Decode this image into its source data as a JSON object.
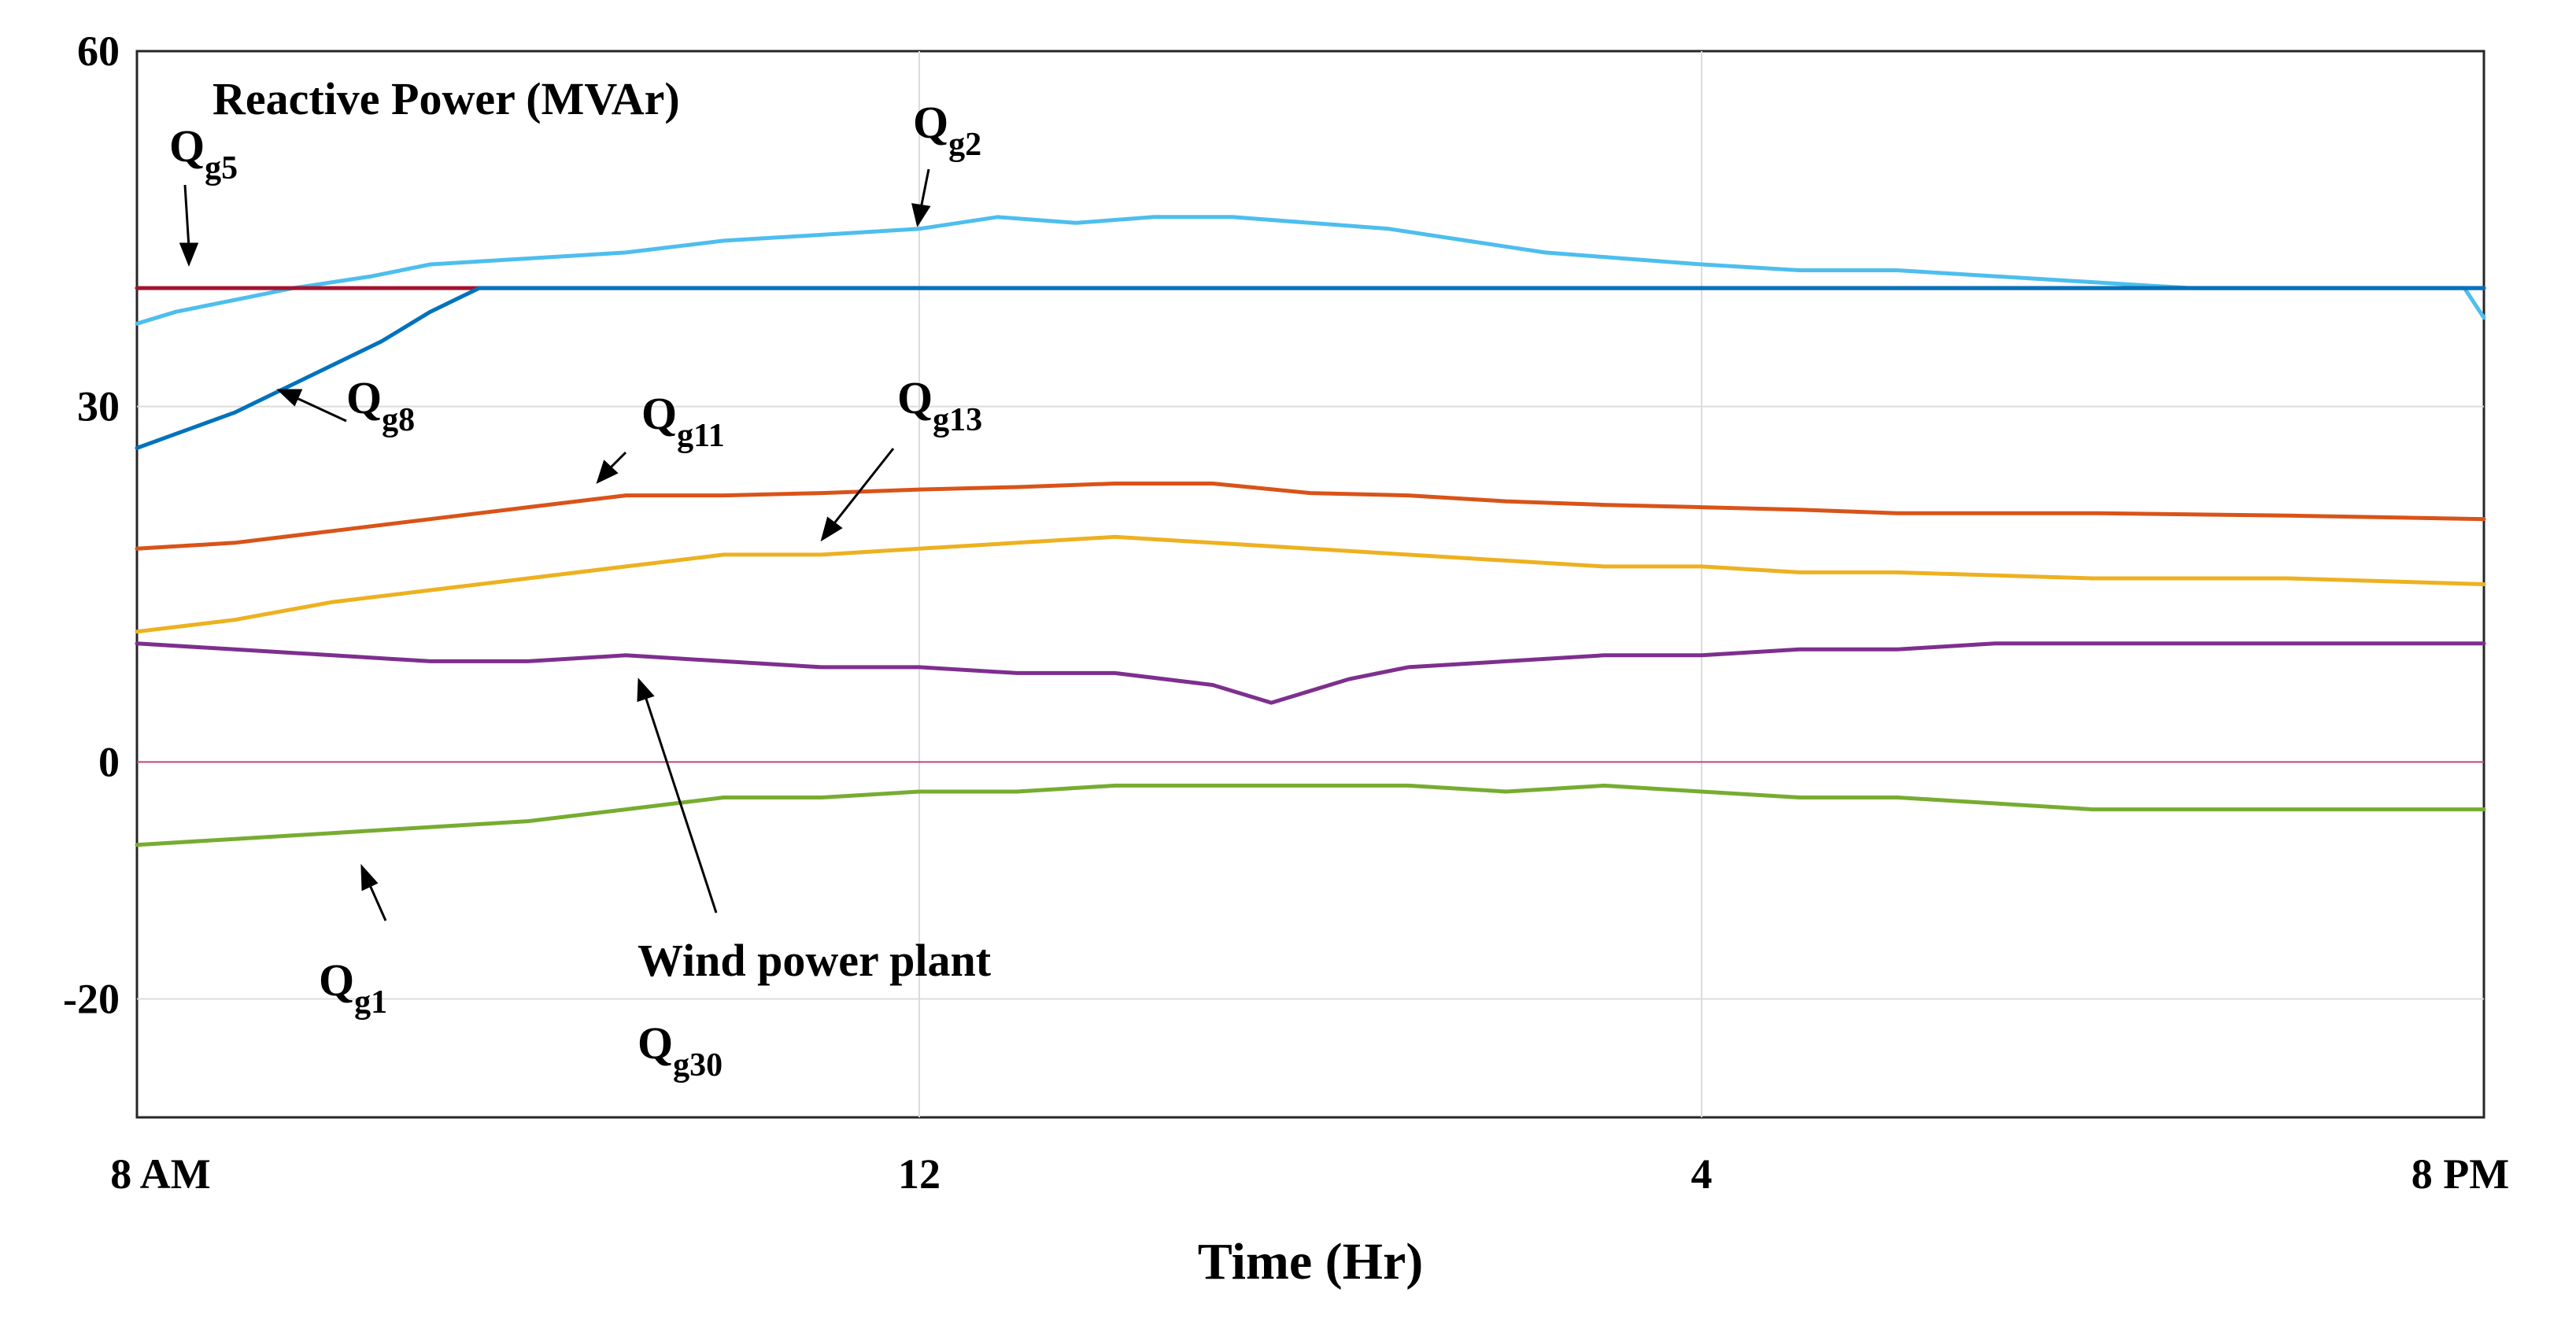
{
  "chart_data": {
    "type": "line",
    "title": "Reactive Power (MVAr)",
    "xlabel": "Time (Hr)",
    "ylabel": "",
    "xlim": [
      0,
      12
    ],
    "ylim": [
      -30,
      60
    ],
    "yticks": [
      60,
      30,
      0,
      -20
    ],
    "ytick_labels": [
      "60",
      "30",
      "0",
      "-20"
    ],
    "xticks": [
      0,
      4,
      8,
      12
    ],
    "xtick_labels": [
      "8 AM",
      "12",
      "4",
      "8 PM"
    ],
    "grid": true,
    "reference_line": {
      "y": 0,
      "color": "#c2447a"
    },
    "series": [
      {
        "name": "Qg2",
        "color": "#4DBEEE",
        "points": [
          [
            0,
            37
          ],
          [
            0.2,
            38
          ],
          [
            0.5,
            39
          ],
          [
            0.8,
            40
          ],
          [
            1.2,
            41
          ],
          [
            1.5,
            42
          ],
          [
            2,
            42.5
          ],
          [
            2.5,
            43
          ],
          [
            3,
            44
          ],
          [
            3.5,
            44.5
          ],
          [
            4,
            45
          ],
          [
            4.4,
            46
          ],
          [
            4.8,
            45.5
          ],
          [
            5.2,
            46
          ],
          [
            5.6,
            46
          ],
          [
            6,
            45.5
          ],
          [
            6.4,
            45
          ],
          [
            6.8,
            44
          ],
          [
            7.2,
            43
          ],
          [
            7.6,
            42.5
          ],
          [
            8,
            42
          ],
          [
            8.5,
            41.5
          ],
          [
            9,
            41.5
          ],
          [
            9.5,
            41
          ],
          [
            10,
            40.5
          ],
          [
            10.5,
            40
          ],
          [
            11,
            40
          ],
          [
            11.5,
            40
          ],
          [
            11.9,
            40
          ],
          [
            12,
            37.5
          ]
        ]
      },
      {
        "name": "Qg5",
        "color": "#A2142F",
        "points": [
          [
            0,
            40
          ],
          [
            12,
            40
          ]
        ]
      },
      {
        "name": "Qg8",
        "color": "#0072BD",
        "points": [
          [
            0,
            26.5
          ],
          [
            0.25,
            28
          ],
          [
            0.5,
            29.5
          ],
          [
            0.75,
            31.5
          ],
          [
            1,
            33.5
          ],
          [
            1.25,
            35.5
          ],
          [
            1.5,
            38
          ],
          [
            1.75,
            40
          ],
          [
            2,
            40
          ],
          [
            12,
            40
          ]
        ]
      },
      {
        "name": "Qg11",
        "color": "#D95319",
        "points": [
          [
            0,
            18
          ],
          [
            0.5,
            18.5
          ],
          [
            1,
            19.5
          ],
          [
            1.5,
            20.5
          ],
          [
            2,
            21.5
          ],
          [
            2.5,
            22.5
          ],
          [
            3,
            22.5
          ],
          [
            3.5,
            22.7
          ],
          [
            4,
            23
          ],
          [
            4.5,
            23.2
          ],
          [
            5,
            23.5
          ],
          [
            5.5,
            23.5
          ],
          [
            6,
            22.7
          ],
          [
            6.5,
            22.5
          ],
          [
            7,
            22
          ],
          [
            7.5,
            21.7
          ],
          [
            8,
            21.5
          ],
          [
            8.5,
            21.3
          ],
          [
            9,
            21
          ],
          [
            10,
            21
          ],
          [
            11,
            20.8
          ],
          [
            12,
            20.5
          ]
        ]
      },
      {
        "name": "Qg13",
        "color": "#EDB120",
        "points": [
          [
            0,
            11
          ],
          [
            0.5,
            12
          ],
          [
            1,
            13.5
          ],
          [
            1.5,
            14.5
          ],
          [
            2,
            15.5
          ],
          [
            2.5,
            16.5
          ],
          [
            3,
            17.5
          ],
          [
            3.5,
            17.5
          ],
          [
            4,
            18
          ],
          [
            4.5,
            18.5
          ],
          [
            5,
            19
          ],
          [
            5.5,
            18.5
          ],
          [
            6,
            18
          ],
          [
            6.5,
            17.5
          ],
          [
            7,
            17
          ],
          [
            7.5,
            16.5
          ],
          [
            8,
            16.5
          ],
          [
            8.5,
            16
          ],
          [
            9,
            16
          ],
          [
            10,
            15.5
          ],
          [
            11,
            15.5
          ],
          [
            12,
            15
          ]
        ]
      },
      {
        "name": "Qg30",
        "color": "#7E2F8E",
        "points": [
          [
            0,
            10
          ],
          [
            0.5,
            9.5
          ],
          [
            1,
            9
          ],
          [
            1.5,
            8.5
          ],
          [
            2,
            8.5
          ],
          [
            2.5,
            9
          ],
          [
            3,
            8.5
          ],
          [
            3.5,
            8
          ],
          [
            4,
            8
          ],
          [
            4.5,
            7.5
          ],
          [
            5,
            7.5
          ],
          [
            5.5,
            6.5
          ],
          [
            5.8,
            5
          ],
          [
            6.2,
            7
          ],
          [
            6.5,
            8
          ],
          [
            7,
            8.5
          ],
          [
            7.5,
            9
          ],
          [
            8,
            9
          ],
          [
            8.5,
            9.5
          ],
          [
            9,
            9.5
          ],
          [
            9.5,
            10
          ],
          [
            10,
            10
          ],
          [
            10.5,
            10
          ],
          [
            11,
            10
          ],
          [
            12,
            10
          ]
        ]
      },
      {
        "name": "Qg1",
        "color": "#77AC30",
        "points": [
          [
            0,
            -7
          ],
          [
            0.5,
            -6.5
          ],
          [
            1,
            -6
          ],
          [
            1.5,
            -5.5
          ],
          [
            2,
            -5
          ],
          [
            2.5,
            -4
          ],
          [
            3,
            -3
          ],
          [
            3.5,
            -3
          ],
          [
            4,
            -2.5
          ],
          [
            4.5,
            -2.5
          ],
          [
            5,
            -2
          ],
          [
            5.5,
            -2
          ],
          [
            6,
            -2
          ],
          [
            6.5,
            -2
          ],
          [
            7,
            -2.5
          ],
          [
            7.5,
            -2
          ],
          [
            8,
            -2.5
          ],
          [
            8.5,
            -3
          ],
          [
            9,
            -3
          ],
          [
            9.5,
            -3.5
          ],
          [
            10,
            -4
          ],
          [
            11,
            -4
          ],
          [
            12,
            -4
          ]
        ]
      }
    ],
    "annotations": [
      {
        "id": "qg5",
        "main": "Q",
        "sub": "g5"
      },
      {
        "id": "qg2",
        "main": "Q",
        "sub": "g2"
      },
      {
        "id": "qg8",
        "main": "Q",
        "sub": "g8"
      },
      {
        "id": "qg11",
        "main": "Q",
        "sub": "g11"
      },
      {
        "id": "qg13",
        "main": "Q",
        "sub": "g13"
      },
      {
        "id": "qg1",
        "main": "Q",
        "sub": "g1"
      },
      {
        "id": "wind",
        "main": "Wind power plant",
        "sub": ""
      },
      {
        "id": "qg30",
        "main": "Q",
        "sub": "g30"
      }
    ]
  }
}
